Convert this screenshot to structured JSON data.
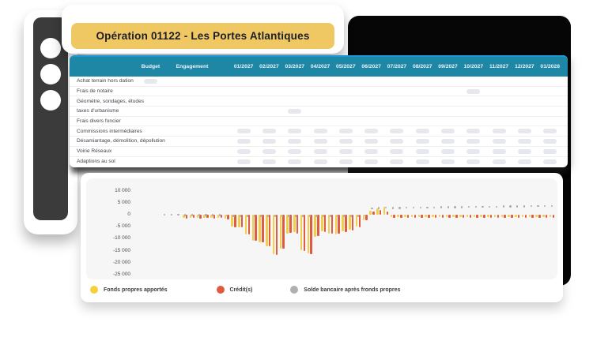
{
  "banner": {
    "title": "Opération 01122 - Les Portes Atlantiques",
    "bg_color": "#efc863"
  },
  "sidebar": {
    "buttons": [
      "menu-button-1",
      "menu-button-2",
      "menu-button-3"
    ]
  },
  "table": {
    "header_bg": "#1f87a6",
    "columns": [
      "",
      "Budget",
      "Engagement",
      "01/2027",
      "02/2027",
      "03/2027",
      "04/2027",
      "05/2027",
      "06/2027",
      "07/2027",
      "08/2027",
      "09/2027",
      "10/2027",
      "11/2027",
      "12/2027",
      "01/2028"
    ],
    "rows": [
      {
        "label": "Achat terrain hors dation",
        "budget_pill": true,
        "engagement_pill": false,
        "month_pills": []
      },
      {
        "label": "Frais de notaire",
        "budget_pill": false,
        "engagement_pill": false,
        "month_pills": [
          10
        ]
      },
      {
        "label": "Géomètre, sondages, études",
        "budget_pill": false,
        "engagement_pill": false,
        "month_pills": []
      },
      {
        "label": "taxes d'urbanisme",
        "budget_pill": false,
        "engagement_pill": false,
        "month_pills": [
          3
        ]
      },
      {
        "label": "Frais divers foncier",
        "budget_pill": false,
        "engagement_pill": false,
        "month_pills": []
      },
      {
        "label": "Commissions intermédiaires",
        "budget_pill": false,
        "engagement_pill": false,
        "month_pills": [
          1,
          2,
          3,
          4,
          5,
          6,
          7,
          8,
          9,
          10,
          11,
          12,
          13
        ]
      },
      {
        "label": "Désamiantage, démolition, dépollution",
        "budget_pill": false,
        "engagement_pill": false,
        "month_pills": [
          1,
          2,
          3,
          4,
          5,
          6,
          7,
          8,
          9,
          10,
          11,
          12,
          13
        ]
      },
      {
        "label": "Voirie Réseaux",
        "budget_pill": false,
        "engagement_pill": false,
        "month_pills": [
          1,
          2,
          3,
          4,
          5,
          6,
          7,
          8,
          9,
          10,
          11,
          12,
          13
        ]
      },
      {
        "label": "Adaptions au sol",
        "budget_pill": false,
        "engagement_pill": false,
        "month_pills": [
          1,
          2,
          3,
          4,
          5,
          6,
          7,
          8,
          9,
          10,
          11,
          12,
          13
        ]
      }
    ]
  },
  "chart_data": {
    "type": "bar",
    "title": "",
    "xlabel": "",
    "ylabel": "",
    "x_labels_visible": false,
    "ylim": [
      -27500,
      12500
    ],
    "grid": false,
    "y_ticks": [
      10000,
      5000,
      0,
      -5000,
      -10000,
      -15000,
      -20000,
      -25000
    ],
    "y_tick_labels": [
      "10 000",
      "5 000",
      "0",
      "-5 000",
      "-10 000",
      "-15 000",
      "-20 000",
      "-25 000"
    ],
    "legend_position": "bottom",
    "colors": {
      "fonds": "#f2cf4a",
      "credit": "#df5c42",
      "solde": "#a9abae"
    },
    "series": [
      {
        "name": "Fonds propres apportés",
        "color": "#f2cf4a",
        "values": [
          null,
          null,
          null,
          -1200,
          -1300,
          -1200,
          -1400,
          -1300,
          -1200,
          -1500,
          -5000,
          -5300,
          -8300,
          -10800,
          -11500,
          -13000,
          -16500,
          -14000,
          -8000,
          -7400,
          -14800,
          -16000,
          -9200,
          -6800,
          -7800,
          -8300,
          -7000,
          -6200,
          -5000,
          -2200,
          1600,
          2600,
          3200,
          -1000,
          -1000,
          -1000,
          -1000,
          -1000,
          -1000,
          -1000,
          -1000,
          -1000,
          -1000,
          -1000,
          -1000,
          -1000,
          -1000,
          -1000,
          -1000,
          -1000,
          -1000,
          -1000,
          -1000,
          -1000,
          -1000,
          -1000,
          -1000
        ]
      },
      {
        "name": "Crédit(s)",
        "color": "#df5c42",
        "values": [
          null,
          null,
          null,
          -1500,
          -1400,
          -1500,
          -1400,
          -1500,
          -1400,
          -2000,
          -5200,
          -5400,
          -8300,
          -11000,
          -11600,
          -13200,
          -16800,
          -14200,
          -7600,
          -7800,
          -15200,
          -16300,
          -9000,
          -7200,
          -8000,
          -8000,
          -7300,
          -6500,
          -5200,
          -2400,
          1200,
          2000,
          1400,
          -1200,
          -1200,
          -1200,
          -1200,
          -1200,
          -1200,
          -1200,
          -1200,
          -1200,
          -1200,
          -1200,
          -1200,
          -1200,
          -1200,
          -1200,
          -1200,
          -1200,
          -1200,
          -1200,
          -1200,
          -1200,
          -1200,
          -1200,
          -1200
        ]
      },
      {
        "name": "Solde bancaire après fronds propres",
        "color": "#a9abae",
        "values": [
          0,
          0,
          0,
          -200,
          -200,
          -200,
          -200,
          -200,
          -200,
          -300,
          -500,
          -500,
          -500,
          -500,
          -500,
          -500,
          -500,
          -500,
          -500,
          -500,
          -500,
          -500,
          -500,
          -500,
          -500,
          -500,
          -500,
          -500,
          -500,
          -400,
          2600,
          2800,
          3000,
          2800,
          2840,
          2880,
          2920,
          2950,
          2990,
          3030,
          3060,
          3100,
          3140,
          3170,
          3210,
          3250,
          3280,
          3320,
          3360,
          3390,
          3430,
          3470,
          3500,
          3540,
          3580,
          3610,
          3650
        ]
      }
    ],
    "legend": [
      {
        "label": "Fonds propres apportés",
        "color": "#f5d03c"
      },
      {
        "label": "Crédit(s)",
        "color": "#e05a41"
      },
      {
        "label": "Solde bancaire après fronds propres",
        "color": "#b0b0b3"
      }
    ]
  }
}
